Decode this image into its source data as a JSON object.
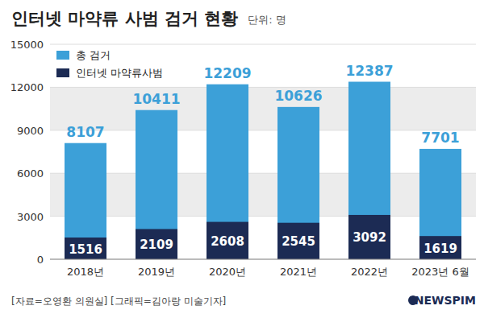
{
  "chart_data": {
    "type": "bar",
    "title": "인터넷 마약류 사범 검거 현황",
    "subtitle": "단위: 명",
    "categories": [
      "2018년",
      "2019년",
      "2020년",
      "2021년",
      "2022년",
      "2023년 6월"
    ],
    "series": [
      {
        "name": "총 검거",
        "color": "#3ca0d8",
        "values": [
          8107,
          10411,
          12209,
          10626,
          12387,
          7701
        ]
      },
      {
        "name": "인터넷 마약류사범",
        "color": "#1c2b54",
        "values": [
          1516,
          2109,
          2608,
          2545,
          3092,
          1619
        ]
      }
    ],
    "stacked": false,
    "data_labels": true,
    "grid": true,
    "legend": "top-left",
    "ylim": [
      0,
      15000
    ],
    "yticks": [
      0,
      3000,
      6000,
      9000,
      12000,
      15000
    ],
    "source": "[자료=오영환 의원실] [그래픽=김아랑 미술기자]",
    "logo": "NEWSPIM"
  }
}
